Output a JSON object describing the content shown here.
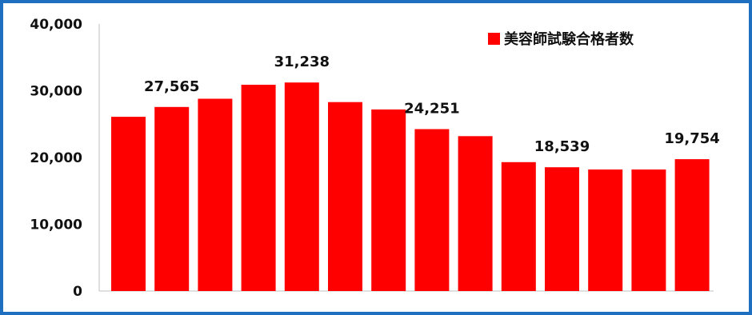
{
  "chart_data": {
    "type": "bar",
    "categories": [
      "",
      "",
      "",
      "",
      "",
      "",
      "",
      "",
      "",
      "",
      "",
      "",
      "",
      ""
    ],
    "series": [
      {
        "name": "美容師試験合格者数",
        "color": "#ff0000",
        "values": [
          26100,
          27565,
          28800,
          30900,
          31238,
          28300,
          27200,
          24251,
          23200,
          19300,
          18539,
          18200,
          18200,
          19754
        ]
      }
    ],
    "data_labels": [
      {
        "index": 1,
        "text": "27,565"
      },
      {
        "index": 4,
        "text": "31,238"
      },
      {
        "index": 7,
        "text": "24,251"
      },
      {
        "index": 10,
        "text": "18,539"
      },
      {
        "index": 13,
        "text": "19,754"
      }
    ],
    "yticks": [
      "0",
      "10,000",
      "20,000",
      "30,000",
      "40,000"
    ],
    "ylim": [
      0,
      40000
    ],
    "legend_position": "top-right",
    "grid": false,
    "frame_color": "#1e6fbf"
  }
}
